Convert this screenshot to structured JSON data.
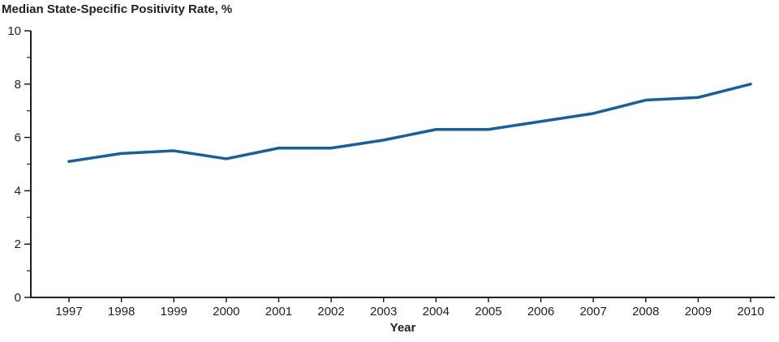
{
  "chart_data": {
    "type": "line",
    "title": "Median State-Specific Positivity Rate, %",
    "xlabel": "Year",
    "ylabel": "",
    "x": [
      1997,
      1998,
      1999,
      2000,
      2001,
      2002,
      2003,
      2004,
      2005,
      2006,
      2007,
      2008,
      2009,
      2010
    ],
    "series": [
      {
        "name": "Median state-specific positivity rate",
        "values": [
          5.1,
          5.4,
          5.5,
          5.2,
          5.6,
          5.6,
          5.9,
          6.3,
          6.3,
          6.6,
          6.9,
          7.4,
          7.5,
          8.0
        ]
      }
    ],
    "ylim": [
      0,
      10
    ],
    "yticks": [
      0,
      2,
      4,
      6,
      8,
      10
    ],
    "minor_yticks": [
      1,
      3,
      5,
      7,
      9
    ],
    "grid": false,
    "legend": false,
    "line_color": "#1560a0",
    "axis_color": "#231f20"
  }
}
